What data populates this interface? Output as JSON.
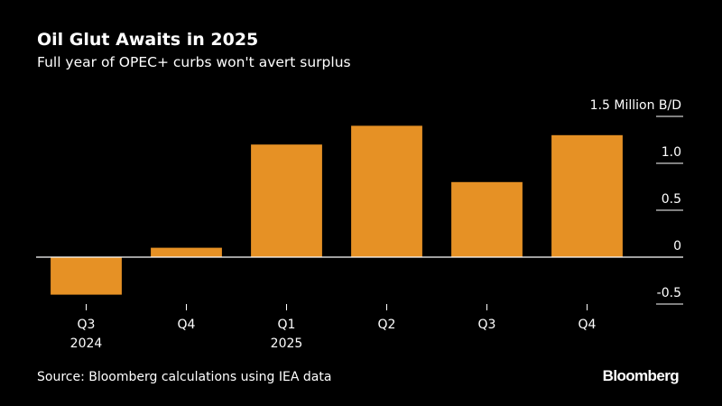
{
  "header": {
    "title": "Oil Glut Awaits in 2025",
    "subtitle": "Full year of OPEC+ curbs won't avert surplus"
  },
  "footer": {
    "source": "Source: Bloomberg calculations using IEA data",
    "brand": "Bloomberg"
  },
  "colors": {
    "background": "#000000",
    "bar": "#e69125",
    "text": "#ffffff",
    "gridline": "#ffffff"
  },
  "chart_data": {
    "type": "bar",
    "title": "Oil Glut Awaits in 2025",
    "subtitle": "Full year of OPEC+ curbs won't avert surplus",
    "xlabel": "",
    "ylabel": "Million B/D",
    "categories": [
      {
        "label": "Q3",
        "year": "2024"
      },
      {
        "label": "Q4",
        "year": ""
      },
      {
        "label": "Q1",
        "year": "2025"
      },
      {
        "label": "Q2",
        "year": ""
      },
      {
        "label": "Q3",
        "year": ""
      },
      {
        "label": "Q4",
        "year": ""
      }
    ],
    "values": [
      -0.4,
      0.1,
      1.2,
      1.4,
      0.8,
      1.3
    ],
    "ylim": [
      -0.5,
      1.5
    ],
    "yticks": [
      {
        "value": 1.5,
        "label": "1.5 Million B/D"
      },
      {
        "value": 1.0,
        "label": "1.0"
      },
      {
        "value": 0.5,
        "label": "0.5"
      },
      {
        "value": 0,
        "label": "0"
      },
      {
        "value": -0.5,
        "label": "-0.5"
      }
    ],
    "axis_side": "right",
    "grid": false,
    "legend": "none"
  }
}
